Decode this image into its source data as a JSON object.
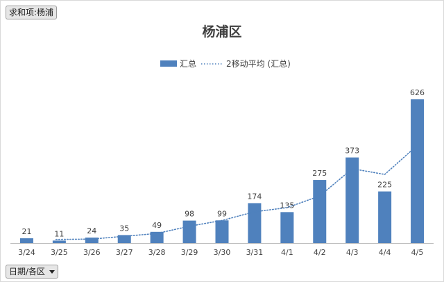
{
  "filter_field": {
    "label": "求和项:杨浦"
  },
  "axis_field": {
    "label": "日期/各区"
  },
  "colors": {
    "bar": "#4f81bd",
    "trend": "#4f81bd",
    "axis": "#bfbfbf"
  },
  "chart_data": {
    "type": "bar",
    "title": "杨浦区",
    "xlabel": "",
    "ylabel": "",
    "legend_position": "top",
    "grid": false,
    "ylim": [
      0,
      680
    ],
    "categories": [
      "3/24",
      "3/25",
      "3/26",
      "3/27",
      "3/28",
      "3/29",
      "3/30",
      "3/31",
      "4/1",
      "4/2",
      "4/3",
      "4/4",
      "4/5"
    ],
    "series": [
      {
        "name": "汇总",
        "type": "bar",
        "values": [
          21,
          11,
          24,
          35,
          49,
          98,
          99,
          174,
          135,
          275,
          373,
          225,
          626
        ]
      },
      {
        "name": "2移动平均 (汇总)",
        "type": "line-dotted",
        "values": [
          null,
          16,
          17.5,
          29.5,
          42,
          73.5,
          98.5,
          136.5,
          154.5,
          205,
          324,
          299,
          425.5
        ]
      }
    ]
  }
}
